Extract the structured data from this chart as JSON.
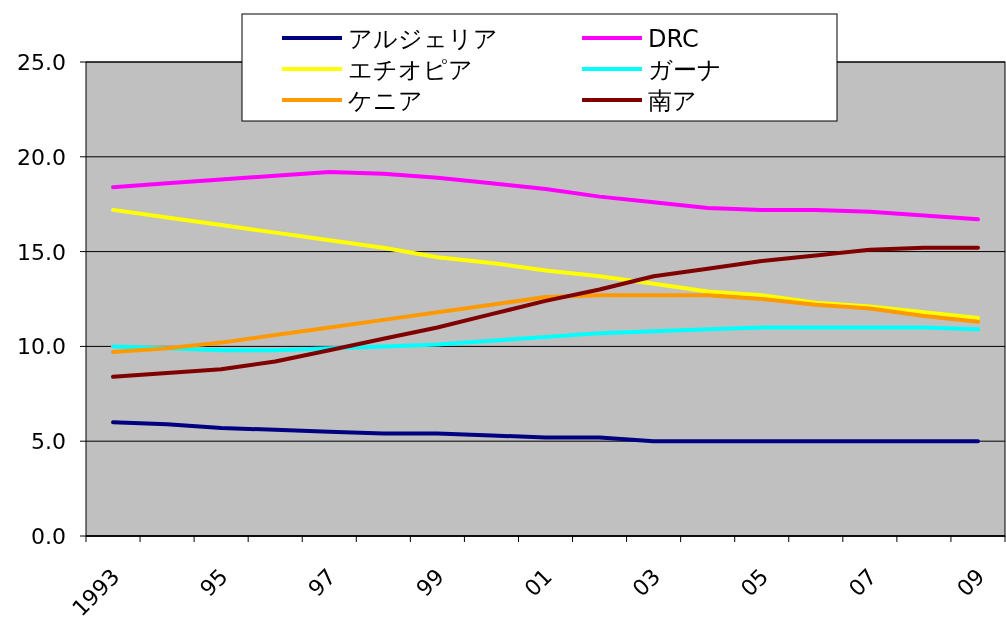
{
  "chart_data": {
    "type": "line",
    "categories": [
      "1993",
      null,
      "95",
      null,
      "97",
      null,
      "99",
      null,
      "01",
      null,
      "03",
      null,
      "05",
      null,
      "07",
      null,
      "09"
    ],
    "series": [
      {
        "name": "アルジェリア",
        "color": "#000080",
        "values": [
          6.0,
          5.9,
          5.7,
          5.6,
          5.5,
          5.4,
          5.4,
          5.3,
          5.2,
          5.2,
          5.0,
          5.0,
          5.0,
          5.0,
          5.0,
          5.0,
          5.0
        ]
      },
      {
        "name": "DRC",
        "color": "#ff00ff",
        "values": [
          18.4,
          18.6,
          18.8,
          19.0,
          19.2,
          19.1,
          18.9,
          18.6,
          18.3,
          17.9,
          17.6,
          17.3,
          17.2,
          17.2,
          17.1,
          16.9,
          16.7
        ]
      },
      {
        "name": "エチオピア",
        "color": "#ffff00",
        "values": [
          17.2,
          16.8,
          16.4,
          16.0,
          15.6,
          15.2,
          14.7,
          14.4,
          14.0,
          13.7,
          13.3,
          12.9,
          12.7,
          12.3,
          12.1,
          11.8,
          11.5
        ]
      },
      {
        "name": "ガーナ",
        "color": "#00ffff",
        "values": [
          10.0,
          9.9,
          9.8,
          9.8,
          9.9,
          10.0,
          10.1,
          10.3,
          10.5,
          10.7,
          10.8,
          10.9,
          11.0,
          11.0,
          11.0,
          11.0,
          10.9
        ]
      },
      {
        "name": "ケニア",
        "color": "#ff9900",
        "values": [
          9.7,
          9.9,
          10.2,
          10.6,
          11.0,
          11.4,
          11.8,
          12.2,
          12.6,
          12.7,
          12.7,
          12.7,
          12.5,
          12.2,
          12.0,
          11.6,
          11.3
        ]
      },
      {
        "name": "南ア",
        "color": "#800000",
        "values": [
          8.4,
          8.6,
          8.8,
          9.2,
          9.8,
          10.4,
          11.0,
          11.7,
          12.4,
          13.0,
          13.7,
          14.1,
          14.5,
          14.8,
          15.1,
          15.2,
          15.2
        ]
      }
    ],
    "ylim": [
      0,
      25
    ],
    "yticks": [
      {
        "value": 0,
        "label": "0.0"
      },
      {
        "value": 5,
        "label": "5.0"
      },
      {
        "value": 10,
        "label": "10.0"
      },
      {
        "value": 15,
        "label": "15.0"
      },
      {
        "value": 20,
        "label": "20.0"
      },
      {
        "value": 25,
        "label": "25.0"
      }
    ],
    "grid": "y",
    "legend": "top",
    "marker": "none",
    "line_style": "solid"
  }
}
